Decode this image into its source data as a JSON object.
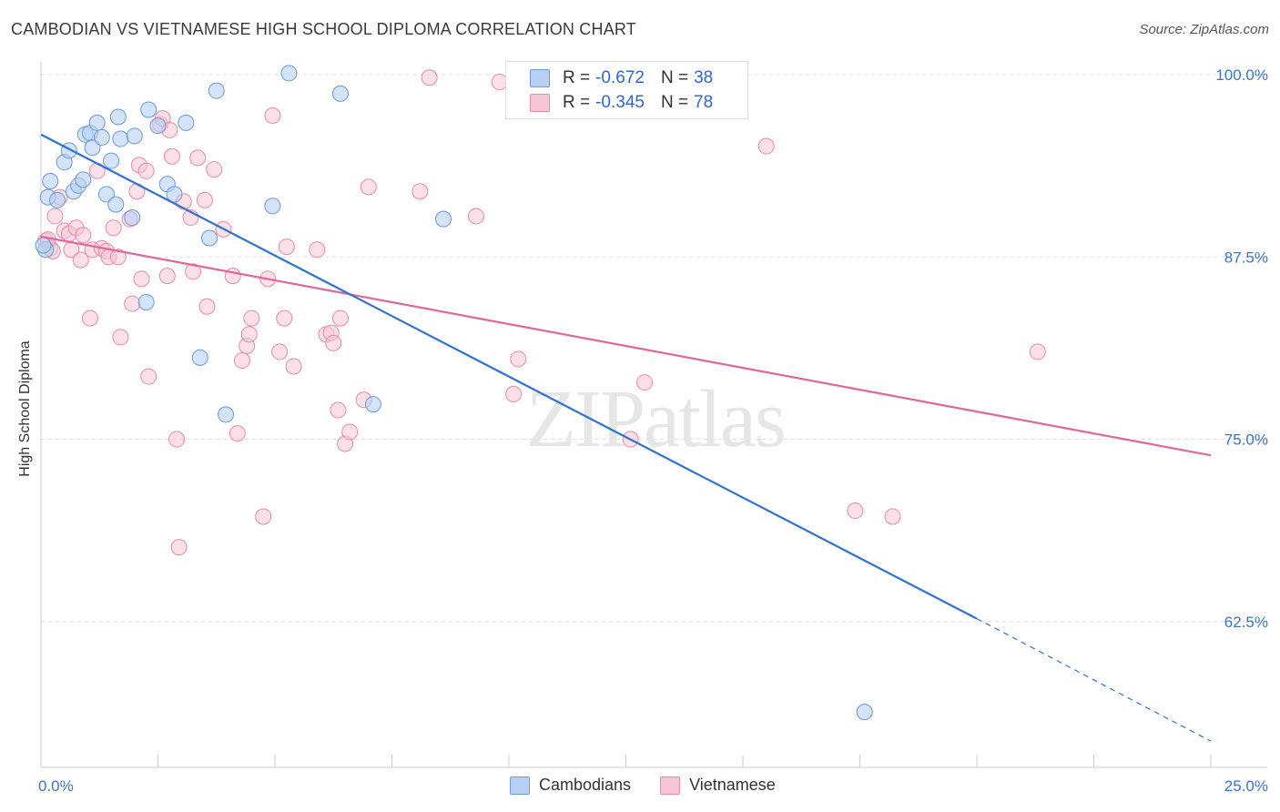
{
  "title": "CAMBODIAN VS VIETNAMESE HIGH SCHOOL DIPLOMA CORRELATION CHART",
  "source": "Source: ZipAtlas.com",
  "legend": {
    "row1": {
      "r_label": "R =",
      "r_value": "-0.672",
      "n_label": "N =",
      "n_value": "38"
    },
    "row2": {
      "r_label": "R =",
      "r_value": "-0.345",
      "n_label": "N =",
      "n_value": "78"
    }
  },
  "bottom_legend": {
    "s1": "Cambodians",
    "s2": "Vietnamese"
  },
  "colors": {
    "cambodian_fill": "#b8d0f3",
    "cambodian_stroke": "#6a9ad8",
    "cambodian_line": "#2f72d0",
    "vietnamese_fill": "#f7c6d6",
    "vietnamese_stroke": "#e68aa8",
    "vietnamese_line": "#e0679a",
    "tick_label": "#3a75c9"
  },
  "chart_data": {
    "type": "scatter",
    "title": "CAMBODIAN VS VIETNAMESE HIGH SCHOOL DIPLOMA CORRELATION CHART",
    "xlabel": "",
    "ylabel": "High School Diploma",
    "xlim": [
      0,
      25
    ],
    "ylim": [
      52.5,
      102.5
    ],
    "x_tick_labels": [
      "0.0%",
      "25.0%"
    ],
    "y_ticks": [
      62.5,
      75.0,
      87.5,
      100.0
    ],
    "y_tick_labels": [
      "62.5%",
      "75.0%",
      "87.5%",
      "100.0%"
    ],
    "grid": true,
    "watermark": "ZIPatlas",
    "series": [
      {
        "name": "Cambodians",
        "r": -0.672,
        "n": 38,
        "trend": {
          "x0": 0.0,
          "y0": 95.9,
          "x1": 20.0,
          "y1": 62.7,
          "dashed_to_x": 25.0,
          "dashed_to_y": 54.3
        },
        "points": [
          [
            0.1,
            88.0
          ],
          [
            0.15,
            91.6
          ],
          [
            0.2,
            92.7
          ],
          [
            0.35,
            91.4
          ],
          [
            0.5,
            94.0
          ],
          [
            0.6,
            94.8
          ],
          [
            0.7,
            92.0
          ],
          [
            0.8,
            92.4
          ],
          [
            0.9,
            92.8
          ],
          [
            0.95,
            95.9
          ],
          [
            1.05,
            96.0
          ],
          [
            1.1,
            95.0
          ],
          [
            1.2,
            96.7
          ],
          [
            1.3,
            95.7
          ],
          [
            1.4,
            91.8
          ],
          [
            1.5,
            94.1
          ],
          [
            1.6,
            91.1
          ],
          [
            1.65,
            97.1
          ],
          [
            1.7,
            95.6
          ],
          [
            1.95,
            90.2
          ],
          [
            2.0,
            95.8
          ],
          [
            2.25,
            84.4
          ],
          [
            2.3,
            97.6
          ],
          [
            2.5,
            96.5
          ],
          [
            2.7,
            92.5
          ],
          [
            2.85,
            91.8
          ],
          [
            3.1,
            96.7
          ],
          [
            3.4,
            80.6
          ],
          [
            3.6,
            88.8
          ],
          [
            3.75,
            98.9
          ],
          [
            3.95,
            76.7
          ],
          [
            4.95,
            91.0
          ],
          [
            5.3,
            100.1
          ],
          [
            6.4,
            98.7
          ],
          [
            7.1,
            77.4
          ],
          [
            8.6,
            90.1
          ],
          [
            17.6,
            56.3
          ],
          [
            0.05,
            88.3
          ]
        ]
      },
      {
        "name": "Vietnamese",
        "r": -0.345,
        "n": 78,
        "trend": {
          "x0": 0.0,
          "y0": 88.9,
          "x1": 25.0,
          "y1": 73.9
        },
        "points": [
          [
            0.1,
            88.6
          ],
          [
            0.2,
            88.1
          ],
          [
            0.25,
            87.9
          ],
          [
            0.3,
            90.3
          ],
          [
            0.4,
            91.6
          ],
          [
            0.5,
            89.3
          ],
          [
            0.6,
            89.1
          ],
          [
            0.65,
            88.0
          ],
          [
            0.75,
            89.5
          ],
          [
            0.85,
            87.3
          ],
          [
            0.9,
            89.0
          ],
          [
            1.05,
            83.3
          ],
          [
            1.1,
            88.0
          ],
          [
            1.2,
            93.4
          ],
          [
            1.3,
            88.1
          ],
          [
            1.4,
            87.9
          ],
          [
            1.45,
            87.5
          ],
          [
            1.55,
            89.5
          ],
          [
            1.65,
            87.5
          ],
          [
            1.7,
            82.0
          ],
          [
            1.9,
            90.1
          ],
          [
            1.95,
            84.3
          ],
          [
            2.05,
            92.0
          ],
          [
            2.1,
            93.8
          ],
          [
            2.15,
            86.0
          ],
          [
            2.25,
            93.4
          ],
          [
            2.3,
            79.3
          ],
          [
            2.55,
            96.6
          ],
          [
            2.6,
            97.0
          ],
          [
            2.7,
            86.2
          ],
          [
            2.75,
            96.2
          ],
          [
            2.8,
            94.4
          ],
          [
            2.9,
            75.0
          ],
          [
            2.95,
            67.6
          ],
          [
            3.05,
            91.3
          ],
          [
            3.2,
            90.2
          ],
          [
            3.25,
            86.5
          ],
          [
            3.35,
            94.3
          ],
          [
            3.5,
            91.4
          ],
          [
            3.55,
            84.1
          ],
          [
            3.7,
            93.5
          ],
          [
            3.9,
            89.4
          ],
          [
            4.1,
            86.2
          ],
          [
            4.2,
            75.4
          ],
          [
            4.3,
            80.4
          ],
          [
            4.4,
            81.4
          ],
          [
            4.45,
            82.2
          ],
          [
            4.5,
            83.3
          ],
          [
            4.75,
            69.7
          ],
          [
            4.85,
            86.0
          ],
          [
            4.95,
            97.2
          ],
          [
            5.1,
            81.0
          ],
          [
            5.2,
            83.3
          ],
          [
            5.25,
            88.2
          ],
          [
            5.4,
            80.0
          ],
          [
            5.9,
            88.0
          ],
          [
            6.1,
            82.2
          ],
          [
            6.2,
            82.3
          ],
          [
            6.25,
            81.6
          ],
          [
            6.35,
            77.0
          ],
          [
            6.4,
            83.3
          ],
          [
            6.5,
            74.7
          ],
          [
            6.6,
            75.5
          ],
          [
            6.9,
            77.7
          ],
          [
            7.0,
            92.3
          ],
          [
            8.1,
            92.0
          ],
          [
            8.3,
            99.8
          ],
          [
            9.3,
            90.3
          ],
          [
            9.8,
            99.5
          ],
          [
            10.1,
            78.1
          ],
          [
            10.2,
            80.5
          ],
          [
            12.6,
            75.0
          ],
          [
            12.9,
            78.9
          ],
          [
            15.5,
            95.1
          ],
          [
            17.4,
            70.1
          ],
          [
            18.2,
            69.7
          ],
          [
            21.3,
            81.0
          ],
          [
            0.15,
            88.7
          ]
        ]
      }
    ]
  }
}
